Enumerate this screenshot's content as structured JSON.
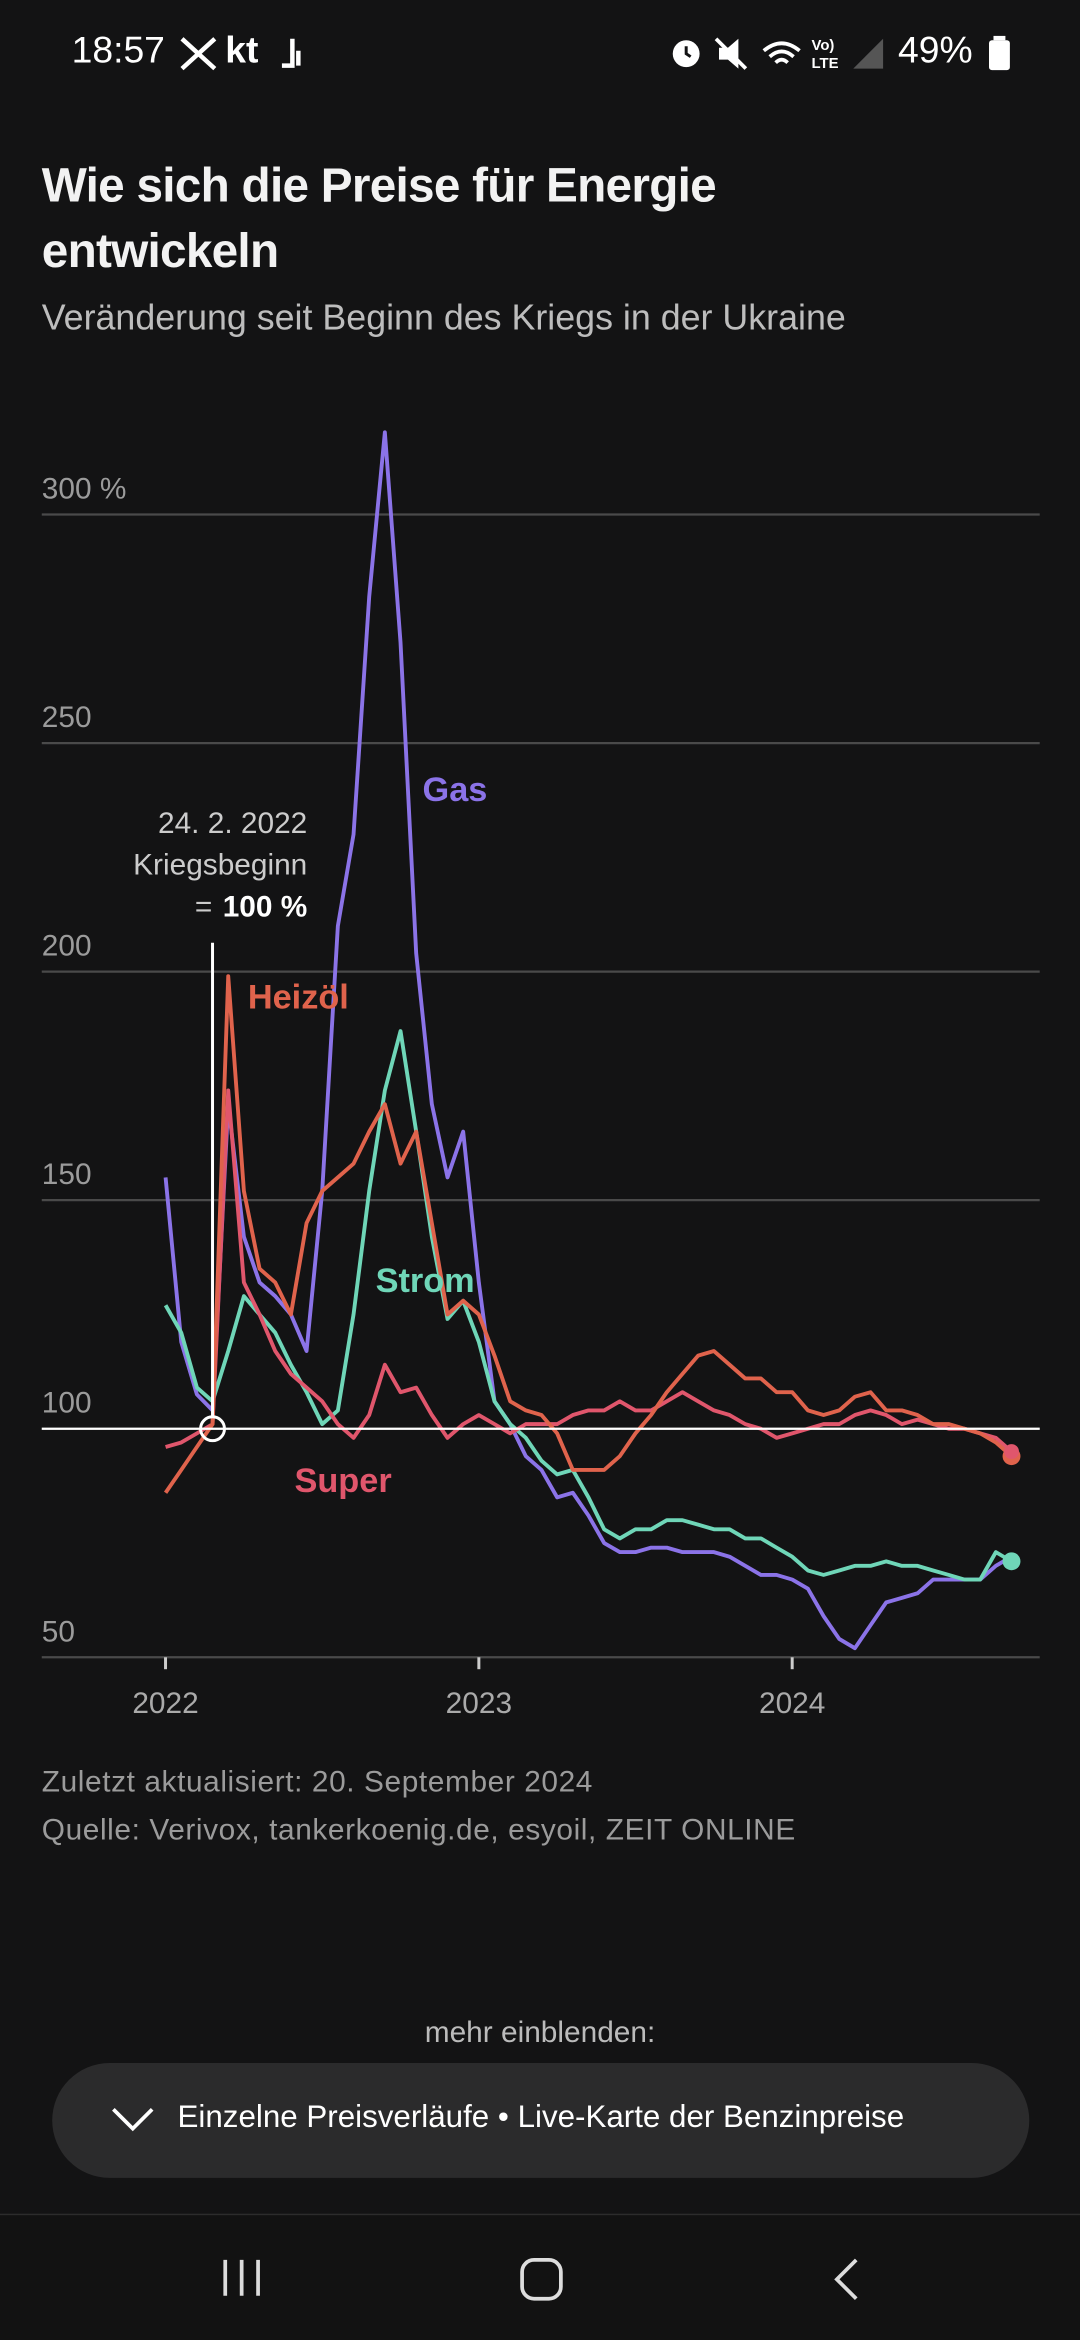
{
  "status_bar": {
    "time": "18:57",
    "apps": "kt",
    "battery": "49%"
  },
  "chart_data": {
    "type": "line",
    "title": "Wie sich die Preise für Energie entwickeln",
    "subtitle": "Veränderung seit Beginn des Kriegs in der Ukraine",
    "x": [
      2022,
      2022.05,
      2022.1,
      2022.15,
      2022.2,
      2022.25,
      2022.3,
      2022.35,
      2022.4,
      2022.45,
      2022.5,
      2022.55,
      2022.6,
      2022.65,
      2022.7,
      2022.75,
      2022.8,
      2022.85,
      2022.9,
      2022.95,
      2023,
      2023.05,
      2023.1,
      2023.15,
      2023.2,
      2023.25,
      2023.3,
      2023.35,
      2023.4,
      2023.45,
      2023.5,
      2023.55,
      2023.6,
      2023.65,
      2023.7,
      2023.75,
      2023.8,
      2023.85,
      2023.9,
      2023.95,
      2024,
      2024.05,
      2024.1,
      2024.15,
      2024.2,
      2024.25,
      2024.3,
      2024.35,
      2024.4,
      2024.45,
      2024.5,
      2024.55,
      2024.6,
      2024.65,
      2024.7
    ],
    "series": [
      {
        "name": "Gas",
        "color": "#8b73e8",
        "values": [
          155,
          119,
          107.5,
          104,
          171,
          142,
          132,
          129,
          125,
          117,
          152,
          210,
          230,
          282,
          318,
          272,
          204,
          171,
          155,
          165,
          132,
          106,
          101,
          94,
          91,
          85,
          86,
          81,
          75,
          73,
          73,
          74,
          74,
          73,
          73,
          73,
          72,
          70,
          68,
          68,
          67,
          65,
          59,
          54,
          52,
          57,
          62,
          63,
          64,
          67,
          67,
          67,
          67,
          70,
          72
        ]
      },
      {
        "name": "Heizöl",
        "color": "#e0634c",
        "values": [
          86,
          91,
          96,
          101,
          199,
          152,
          135,
          132,
          125,
          145,
          152,
          155,
          158,
          165,
          171,
          158,
          165,
          145,
          125,
          128,
          125,
          116,
          106,
          104,
          103,
          99,
          91,
          91,
          91,
          94,
          99,
          103,
          108,
          112,
          116,
          117,
          114,
          111,
          111,
          108,
          108,
          104,
          103,
          104,
          107,
          108,
          104,
          104,
          103,
          101,
          101,
          100,
          99,
          97,
          94
        ]
      },
      {
        "name": "Strom",
        "color": "#6fd6b8",
        "values": [
          127,
          121,
          109,
          106,
          117,
          129,
          125,
          121,
          114,
          108,
          101,
          104,
          125,
          152,
          174,
          187,
          165,
          142,
          124,
          128,
          119,
          106,
          101,
          98,
          93,
          90,
          91,
          85,
          78,
          76,
          78,
          78,
          80,
          80,
          79,
          78,
          78,
          76,
          76,
          74,
          72,
          69,
          68,
          69,
          70,
          70,
          71,
          70,
          70,
          69,
          68,
          67,
          67,
          73,
          71
        ]
      },
      {
        "name": "Super",
        "color": "#e0566c",
        "values": [
          96,
          97,
          99,
          101,
          174,
          132,
          125,
          117,
          112,
          109,
          106,
          101,
          98,
          103,
          114,
          108,
          109,
          103,
          98,
          101,
          103,
          101,
          99,
          101,
          101,
          101,
          103,
          104,
          104,
          106,
          104,
          104,
          106,
          108,
          106,
          104,
          103,
          101,
          100,
          98,
          99,
          100,
          101,
          101,
          103,
          104,
          103,
          101,
          102,
          101,
          100,
          100,
          99,
          98,
          95
        ]
      }
    ],
    "xlim": [
      2021.605,
      2024.79
    ],
    "xticks": [
      2022,
      2023,
      2024
    ],
    "ylim": [
      50,
      330
    ],
    "yticks": [
      50,
      100,
      150,
      200,
      250,
      {
        "value": 300,
        "label": "300 %"
      }
    ],
    "grid": true,
    "baseline": 100,
    "annotation": {
      "x": 2022.15,
      "lines": [
        "24. 2. 2022",
        "Kriegsbeginn"
      ],
      "prefix": "=",
      "emphasis": "100 %"
    }
  },
  "footer": {
    "updated": "Zuletzt aktualisiert: 20. September 2024",
    "source": "Quelle: Verivox, tankerkoenig.de, esyoil, ZEIT ONLINE"
  },
  "more": {
    "label": "mehr einblenden:",
    "button": "Einzelne Preisverläufe • Live-Karte der Benzinpreise"
  }
}
